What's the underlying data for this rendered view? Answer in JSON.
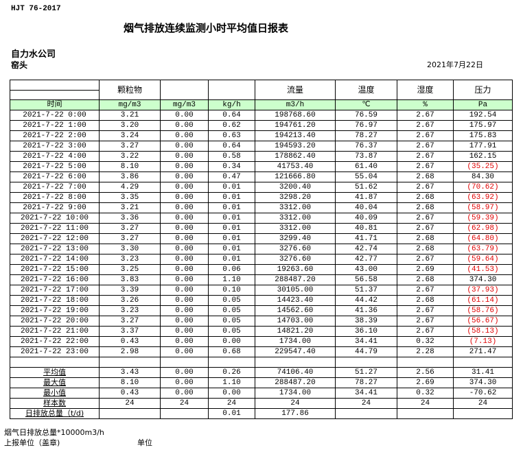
{
  "standard": "HJT  76-2017",
  "title": "烟气排放连续监测小时平均值日报表",
  "company": "自力水公司",
  "site": "窑头",
  "date": "2021年7月22日",
  "headers": [
    "",
    "颗粒物",
    "",
    "",
    "流量",
    "温度",
    "湿度",
    "压力"
  ],
  "units": [
    "时间",
    "mg/m3",
    "mg/m3",
    "kg/h",
    "m3/h",
    "℃",
    "%",
    "Pa"
  ],
  "colors": {
    "unit_row_bg": "#ccffcc",
    "negative": "#e00000"
  },
  "rows": [
    [
      "2021-7-22 0:00",
      "3.21",
      "0.00",
      "0.64",
      "198768.60",
      "76.59",
      "2.67",
      "192.54"
    ],
    [
      "2021-7-22 1:00",
      "3.20",
      "0.00",
      "0.62",
      "194761.20",
      "76.97",
      "2.67",
      "175.97"
    ],
    [
      "2021-7-22 2:00",
      "3.24",
      "0.00",
      "0.63",
      "194213.40",
      "78.27",
      "2.67",
      "175.83"
    ],
    [
      "2021-7-22 3:00",
      "3.27",
      "0.00",
      "0.64",
      "194593.20",
      "76.37",
      "2.67",
      "177.91"
    ],
    [
      "2021-7-22 4:00",
      "3.22",
      "0.00",
      "0.58",
      "178862.40",
      "73.87",
      "2.67",
      "162.15"
    ],
    [
      "2021-7-22 5:00",
      "8.10",
      "0.00",
      "0.34",
      "41753.40",
      "61.40",
      "2.67",
      "(35.25)"
    ],
    [
      "2021-7-22 6:00",
      "3.86",
      "0.00",
      "0.47",
      "121666.80",
      "55.04",
      "2.68",
      "84.30"
    ],
    [
      "2021-7-22 7:00",
      "4.29",
      "0.00",
      "0.01",
      "3200.40",
      "51.62",
      "2.67",
      "(70.62)"
    ],
    [
      "2021-7-22 8:00",
      "3.35",
      "0.00",
      "0.01",
      "3298.20",
      "41.87",
      "2.68",
      "(63.92)"
    ],
    [
      "2021-7-22 9:00",
      "3.21",
      "0.00",
      "0.01",
      "3312.00",
      "40.04",
      "2.68",
      "(58.97)"
    ],
    [
      "2021-7-22 10:00",
      "3.36",
      "0.00",
      "0.01",
      "3312.00",
      "40.09",
      "2.67",
      "(59.39)"
    ],
    [
      "2021-7-22 11:00",
      "3.27",
      "0.00",
      "0.01",
      "3312.00",
      "40.81",
      "2.67",
      "(62.98)"
    ],
    [
      "2021-7-22 12:00",
      "3.27",
      "0.00",
      "0.01",
      "3299.40",
      "41.71",
      "2.68",
      "(64.80)"
    ],
    [
      "2021-7-22 13:00",
      "3.30",
      "0.00",
      "0.01",
      "3276.60",
      "42.74",
      "2.68",
      "(63.79)"
    ],
    [
      "2021-7-22 14:00",
      "3.23",
      "0.00",
      "0.01",
      "3276.60",
      "42.77",
      "2.67",
      "(59.64)"
    ],
    [
      "2021-7-22 15:00",
      "3.25",
      "0.00",
      "0.06",
      "19263.60",
      "43.00",
      "2.69",
      "(41.53)"
    ],
    [
      "2021-7-22 16:00",
      "3.83",
      "0.00",
      "1.10",
      "288487.20",
      "56.58",
      "2.68",
      "374.30"
    ],
    [
      "2021-7-22 17:00",
      "3.39",
      "0.00",
      "0.10",
      "30105.00",
      "51.37",
      "2.67",
      "(37.93)"
    ],
    [
      "2021-7-22 18:00",
      "3.26",
      "0.00",
      "0.05",
      "14423.40",
      "44.42",
      "2.68",
      "(61.14)"
    ],
    [
      "2021-7-22 19:00",
      "3.23",
      "0.00",
      "0.05",
      "14562.60",
      "41.36",
      "2.67",
      "(58.76)"
    ],
    [
      "2021-7-22 20:00",
      "3.27",
      "0.00",
      "0.05",
      "14703.00",
      "38.39",
      "2.67",
      "(56.67)"
    ],
    [
      "2021-7-22 21:00",
      "3.37",
      "0.00",
      "0.05",
      "14821.20",
      "36.10",
      "2.67",
      "(58.13)"
    ],
    [
      "2021-7-22 22:00",
      "0.43",
      "0.00",
      "0.00",
      "1734.00",
      "34.41",
      "0.32",
      "(7.13)"
    ],
    [
      "2021-7-22 23:00",
      "2.98",
      "0.00",
      "0.68",
      "229547.40",
      "44.79",
      "2.28",
      "271.47"
    ]
  ],
  "summary": [
    [
      "平均值",
      "3.43",
      "0.00",
      "0.26",
      "74106.40",
      "51.27",
      "2.56",
      "31.41"
    ],
    [
      "最大值",
      "8.10",
      "0.00",
      "1.10",
      "288487.20",
      "78.27",
      "2.69",
      "374.30"
    ],
    [
      "最小值",
      "0.43",
      "0.00",
      "0.00",
      "1734.00",
      "34.41",
      "0.32",
      "-70.62"
    ],
    [
      "样本数",
      "24",
      "24",
      "24",
      "24",
      "24",
      "24",
      "24"
    ],
    [
      "日排放总量（t/d)",
      "",
      "",
      "0.01",
      "177.86",
      "",
      "",
      ""
    ]
  ],
  "footer": {
    "flue_total": "烟气日排放总量*10000m3/h",
    "report_unit": "上报单位（盖章)",
    "unit": "单位"
  }
}
